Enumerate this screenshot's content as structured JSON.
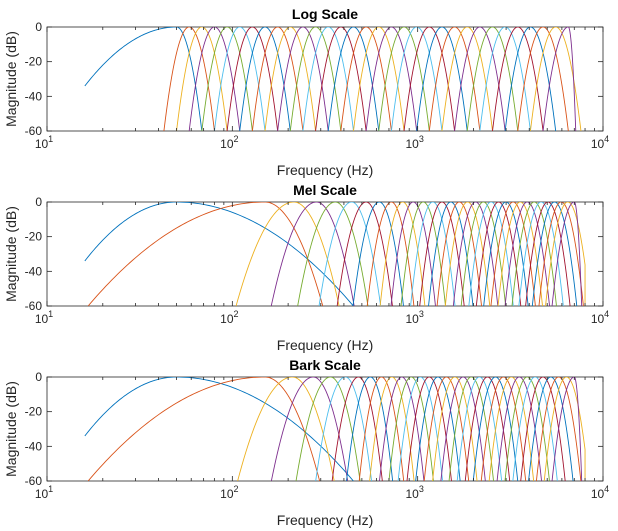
{
  "chart_data": [
    {
      "type": "line",
      "title": "Log Scale",
      "xlabel": "Frequency (Hz)",
      "ylabel": "Magnitude (dB)",
      "xscale": "log",
      "xlim": [
        10,
        10000
      ],
      "ylim": [
        -60,
        0
      ],
      "xticks": [
        {
          "base": "10",
          "exp": "1"
        },
        {
          "base": "10",
          "exp": "2"
        },
        {
          "base": "10",
          "exp": "3"
        },
        {
          "base": "10",
          "exp": "4"
        }
      ],
      "xtick_values": [
        10,
        100,
        1000,
        10000
      ],
      "yticks": [
        "-60",
        "-40",
        "-20",
        "0"
      ],
      "ytick_values": [
        -60,
        -40,
        -20,
        0
      ],
      "grid": false,
      "series_count": 32,
      "first_peak_hz": 50,
      "last_peak_hz": 6500,
      "first_filter_low_edge_hz": 16,
      "first_filter_low_edge_db": -34,
      "cutoff_hz": 8000,
      "peak_spacing": "log"
    },
    {
      "type": "line",
      "title": "Mel Scale",
      "xlabel": "Frequency (Hz)",
      "ylabel": "Magnitude (dB)",
      "xscale": "log",
      "xlim": [
        10,
        10000
      ],
      "ylim": [
        -60,
        0
      ],
      "xticks": [
        {
          "base": "10",
          "exp": "1"
        },
        {
          "base": "10",
          "exp": "2"
        },
        {
          "base": "10",
          "exp": "3"
        },
        {
          "base": "10",
          "exp": "4"
        }
      ],
      "xtick_values": [
        10,
        100,
        1000,
        10000
      ],
      "yticks": [
        "-60",
        "-40",
        "-20",
        "0"
      ],
      "ytick_values": [
        -60,
        -40,
        -20,
        0
      ],
      "grid": false,
      "series_count": 32,
      "first_peak_hz": 50,
      "second_peak_hz": 150,
      "last_peak_hz": 7000,
      "first_filter_low_edge_hz": 16,
      "first_filter_low_edge_db": -34,
      "cutoff_hz": 8000,
      "peak_spacing": "mel"
    },
    {
      "type": "line",
      "title": "Bark Scale",
      "xlabel": "Frequency (Hz)",
      "ylabel": "Magnitude (dB)",
      "xscale": "log",
      "xlim": [
        10,
        10000
      ],
      "ylim": [
        -60,
        0
      ],
      "xticks": [
        {
          "base": "10",
          "exp": "1"
        },
        {
          "base": "10",
          "exp": "2"
        },
        {
          "base": "10",
          "exp": "3"
        },
        {
          "base": "10",
          "exp": "4"
        }
      ],
      "xtick_values": [
        10,
        100,
        1000,
        10000
      ],
      "yticks": [
        "-60",
        "-40",
        "-20",
        "0"
      ],
      "ytick_values": [
        -60,
        -40,
        -20,
        0
      ],
      "grid": false,
      "series_count": 32,
      "first_peak_hz": 50,
      "second_peak_hz": 150,
      "last_peak_hz": 7000,
      "first_filter_low_edge_hz": 16,
      "first_filter_low_edge_db": -34,
      "cutoff_hz": 8000,
      "peak_spacing": "bark"
    }
  ],
  "series_colors": [
    "#0072BD",
    "#D95319",
    "#EDB120",
    "#7E2F8E",
    "#77AC30",
    "#4DBEEE",
    "#A2142F"
  ]
}
